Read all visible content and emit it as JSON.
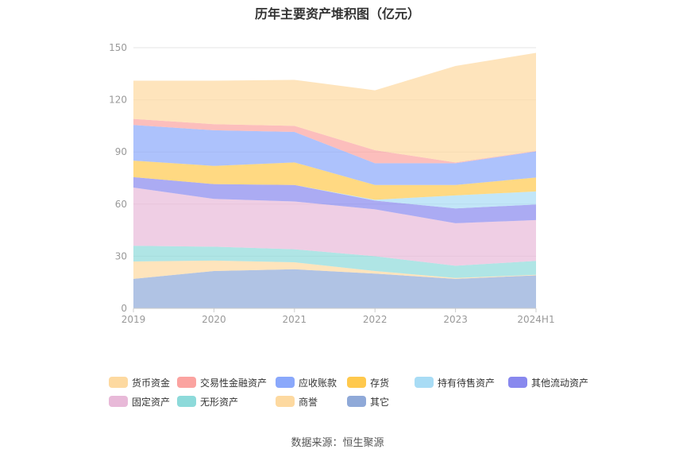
{
  "chart_data": {
    "type": "area",
    "stacked": true,
    "title": "历年主要资产堆积图（亿元）",
    "categories": [
      "2019",
      "2020",
      "2021",
      "2022",
      "2023",
      "2024H1"
    ],
    "ylim": [
      0,
      150
    ],
    "yticks": [
      0,
      30,
      60,
      90,
      120,
      150
    ],
    "series": [
      {
        "name": "其它",
        "color": "#8fa9d8",
        "values": [
          17,
          21.5,
          22.5,
          20,
          17,
          19
        ]
      },
      {
        "name": "商誉",
        "color": "#fdd9a0",
        "values": [
          10,
          6,
          4,
          1.5,
          0.5,
          0.3
        ]
      },
      {
        "name": "无形资产",
        "color": "#8ddada",
        "values": [
          9,
          8,
          7.5,
          8.5,
          7,
          8
        ]
      },
      {
        "name": "固定资产",
        "color": "#e8b9d8",
        "values": [
          33.5,
          27.5,
          27.5,
          27,
          24.5,
          23.5
        ]
      },
      {
        "name": "其他流动资产",
        "color": "#8888ee",
        "values": [
          6,
          8.5,
          9.5,
          5,
          8.5,
          9
        ]
      },
      {
        "name": "持有待售资产",
        "color": "#a8dcf5",
        "values": [
          0,
          0,
          0,
          0.5,
          7.5,
          7.5
        ]
      },
      {
        "name": "存货",
        "color": "#ffc94d",
        "values": [
          9.5,
          10.5,
          13,
          8.5,
          6,
          8
        ]
      },
      {
        "name": "应收账款",
        "color": "#8aa8fb",
        "values": [
          20.5,
          20.5,
          17.5,
          12.5,
          12.5,
          15
        ]
      },
      {
        "name": "交易性金融资产",
        "color": "#fba3a0",
        "values": [
          3.5,
          3.5,
          3.5,
          7.5,
          0.5,
          0.3
        ]
      },
      {
        "name": "货币资金",
        "color": "#fdd9a0",
        "values": [
          22,
          25,
          26.5,
          34.5,
          55.5,
          56.4
        ]
      }
    ],
    "legend": [
      {
        "name": "货币资金",
        "color": "#fdd9a0"
      },
      {
        "name": "交易性金融资产",
        "color": "#fba3a0"
      },
      {
        "name": "应收账款",
        "color": "#8aa8fb"
      },
      {
        "name": "存货",
        "color": "#ffc94d"
      },
      {
        "name": "持有待售资产",
        "color": "#a8dcf5"
      },
      {
        "name": "其他流动资产",
        "color": "#8888ee"
      },
      {
        "name": "固定资产",
        "color": "#e8b9d8"
      },
      {
        "name": "无形资产",
        "color": "#8ddada"
      },
      {
        "name": "商誉",
        "color": "#fdd9a0"
      },
      {
        "name": "其它",
        "color": "#8fa9d8"
      }
    ],
    "legend_position": "bottom",
    "grid": true
  },
  "source": "数据来源：恒生聚源"
}
